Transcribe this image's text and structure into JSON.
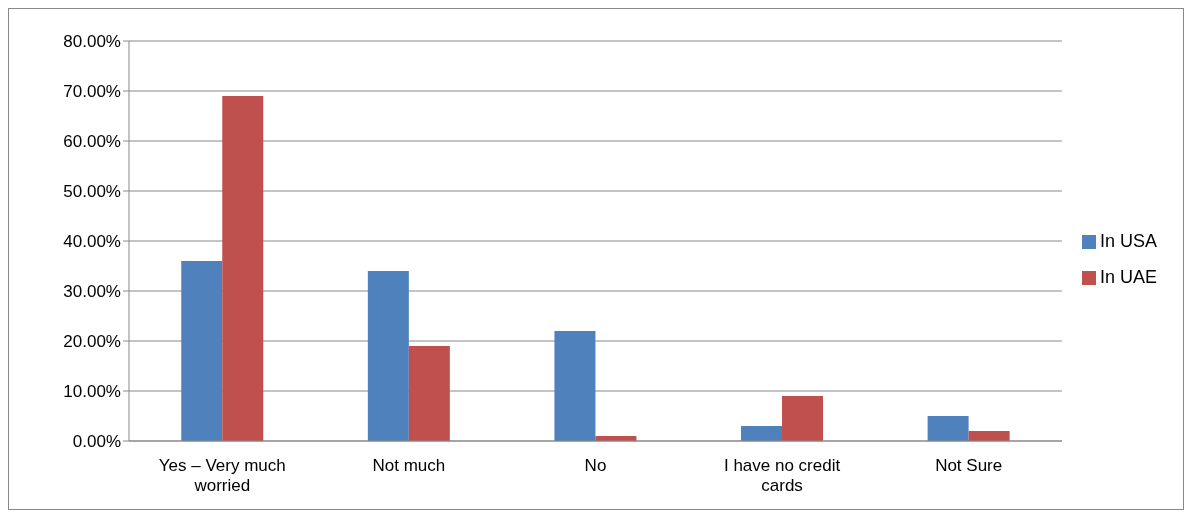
{
  "chart_data": {
    "type": "bar",
    "categories": [
      "Yes – Very much worried",
      "Not much",
      "No",
      "I have no credit cards",
      "Not Sure"
    ],
    "series": [
      {
        "name": "In USA",
        "color": "#4f81bd",
        "values": [
          36,
          34,
          22,
          3,
          5
        ]
      },
      {
        "name": "In UAE",
        "color": "#c0504d",
        "values": [
          69,
          19,
          1,
          9,
          2
        ]
      }
    ],
    "ylim": [
      0,
      80
    ],
    "yticks": [
      {
        "value": 0,
        "label": "0.00%"
      },
      {
        "value": 10,
        "label": "10.00%"
      },
      {
        "value": 20,
        "label": "20.00%"
      },
      {
        "value": 30,
        "label": "30.00%"
      },
      {
        "value": 40,
        "label": "40.00%"
      },
      {
        "value": 50,
        "label": "50.00%"
      },
      {
        "value": 60,
        "label": "60.00%"
      },
      {
        "value": 70,
        "label": "70.00%"
      },
      {
        "value": 80,
        "label": "80.00%"
      }
    ],
    "grid": "y",
    "legend": "right"
  }
}
